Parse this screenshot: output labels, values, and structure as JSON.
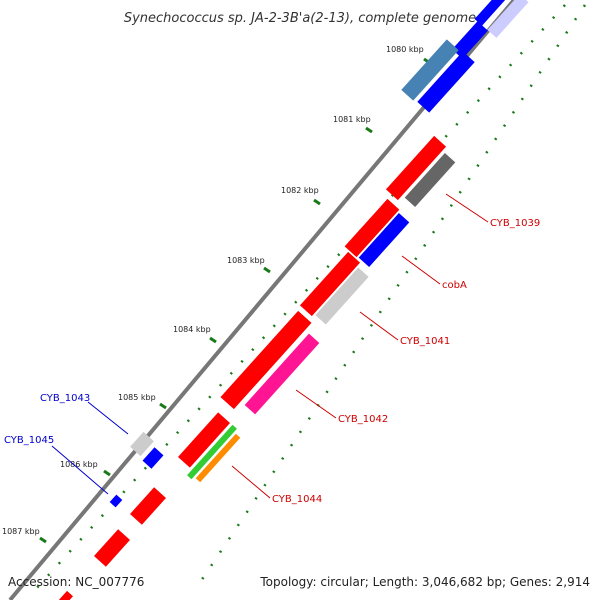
{
  "title": "Synechococcus sp. JA-2-3B'a(2-13), complete genome",
  "footer": {
    "accession": "Accession: NC_007776",
    "summary": "Topology: circular; Length: 3,046,682 bp; Genes: 2,914"
  },
  "ticks": [
    "1080 kbp",
    "1081 kbp",
    "1082 kbp",
    "1083 kbp",
    "1084 kbp",
    "1085 kbp",
    "1086 kbp",
    "1087 kbp"
  ],
  "genes": {
    "cyb1039": "CYB_1039",
    "coba": "cobA",
    "cyb1041": "CYB_1041",
    "cyb1042": "CYB_1042",
    "cyb1043": "CYB_1043",
    "cyb1044": "CYB_1044",
    "cyb1045": "CYB_1045"
  },
  "colors": {
    "red": "#ff0000",
    "blue": "#0000ff",
    "gray": "#bbbbbb",
    "darkgray": "#666666",
    "steelblue": "#4682b4",
    "magenta": "#ff1493",
    "green": "#33cc33",
    "orange": "#ff8c00",
    "backbone": "#777777",
    "tickgreen": "#1a7a1a",
    "label_red": "#cc0000",
    "label_blue": "#0000cc"
  }
}
